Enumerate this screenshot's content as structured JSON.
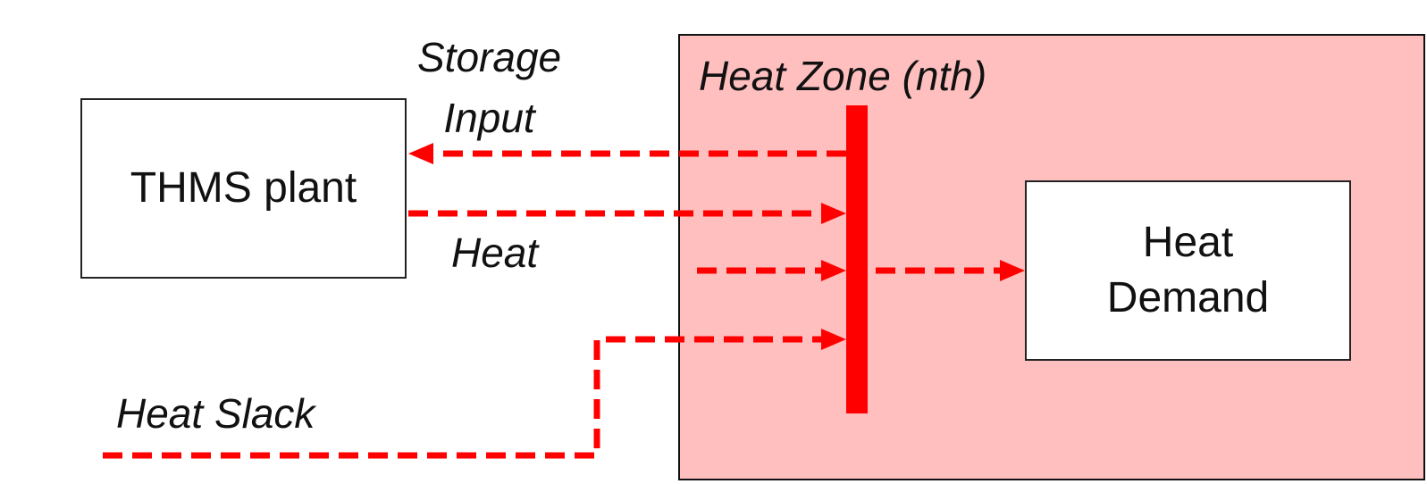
{
  "zone": {
    "title": "Heat Zone (nth)",
    "fill_color": "#ffbfbf"
  },
  "plant": {
    "label": "THMS plant"
  },
  "demand": {
    "line1": "Heat",
    "line2": "Demand"
  },
  "labels": {
    "storage_line1": "Storage",
    "storage_line2": "Input",
    "heat": "Heat",
    "heat_slack": "Heat Slack"
  },
  "colors": {
    "flow": "#ff0000",
    "bus": "#ff0000"
  }
}
